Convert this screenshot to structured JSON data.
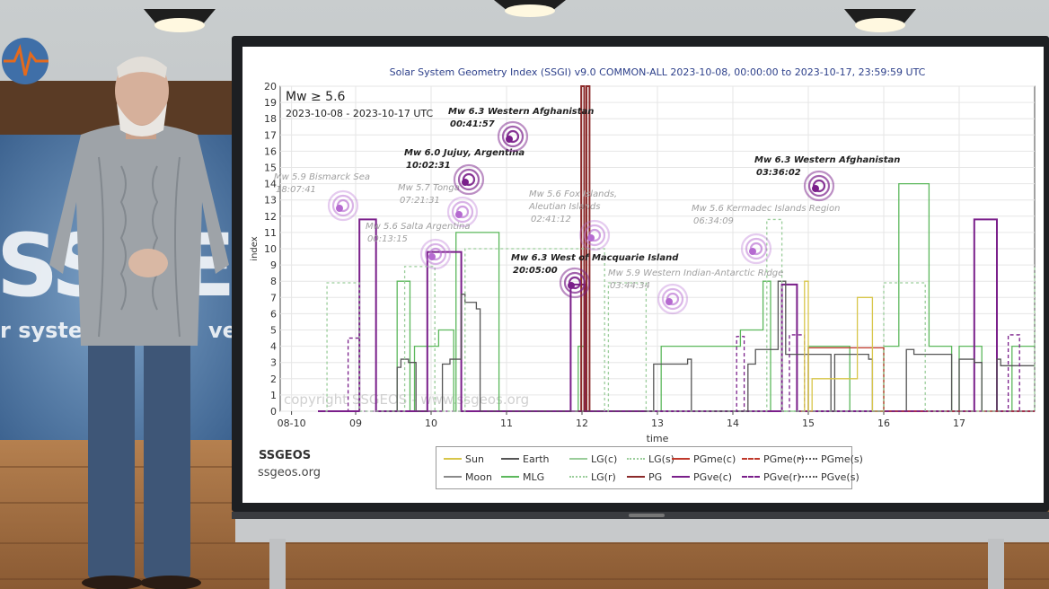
{
  "background": {
    "wall_text_main": "SSGEOS",
    "wall_text_sub": "r system",
    "wall_text_sub2": "vey"
  },
  "brand": {
    "name": "SSGEOS",
    "url": "ssgeos.org"
  },
  "chart_data": {
    "type": "line",
    "title": "Solar System Geometry Index (SSGI) v9.0 COMMON-ALL 2023-10-08, 00:00:00 to 2023-10-17, 23:59:59 UTC",
    "xlabel": "time",
    "ylabel": "index",
    "ylim": [
      0,
      20
    ],
    "xlim": [
      "2023-10-08",
      "2023-10-18"
    ],
    "x_ticks": [
      "08-10",
      "09",
      "10",
      "11",
      "12",
      "13",
      "14",
      "15",
      "16",
      "17"
    ],
    "y_ticks": [
      "0",
      "1",
      "2",
      "3",
      "4",
      "5",
      "6",
      "7",
      "8",
      "9",
      "10",
      "11",
      "12",
      "13",
      "14",
      "15",
      "16",
      "17",
      "18",
      "19",
      "20"
    ],
    "grid": true,
    "panel_label": "Mw ≥ 5.6",
    "panel_sublabel": "2023-10-08 - 2023-10-17 UTC",
    "watermark": "copyright SSGEOS - www.ssgeos.org",
    "colors": {
      "Sun": "#d8c64a",
      "Moon": "#8a8a8a",
      "Earth": "#555555",
      "MLG": "#5cb85c",
      "LG(c)": "#9acd9a",
      "LG(r)": "#9acd9a",
      "LG(s)": "#9acd9a",
      "PG": "#8b2a2a",
      "PGme(c)": "#c0392b",
      "PGme(r)": "#c0392b",
      "PGme(s)": "#555555",
      "PGve(c)": "#7a1f8a",
      "PGve(r)": "#7a1f8a",
      "PGve(s)": "#555555"
    },
    "legend_placement": "bottom",
    "legend": [
      [
        "Sun",
        "Earth",
        "LG(c)",
        "LG(s)",
        "PGme(c)",
        "PGme(r)",
        "PGme(s)"
      ],
      [
        "Moon",
        "MLG",
        "LG(r)",
        "PG",
        "PGve(c)",
        "PGve(r)",
        "PGve(s)"
      ]
    ],
    "series": [
      {
        "name": "MLG",
        "x": [
          9.45,
          9.55,
          9.62,
          9.72,
          9.78,
          10.1,
          10.3,
          10.33,
          10.85,
          10.9,
          11.95,
          12.05,
          12.98,
          13.05,
          14.1,
          14.4,
          14.5,
          15.0,
          15.5,
          15.55,
          16.0,
          16.2,
          16.5,
          16.6,
          16.9,
          17.0,
          17.3,
          17.7,
          18.0
        ],
        "y": [
          0,
          8,
          8,
          0,
          4,
          5,
          0,
          11,
          11,
          0,
          4,
          0,
          0,
          4,
          5,
          8,
          0,
          4,
          4,
          0,
          4,
          14,
          14,
          4,
          0,
          4,
          0,
          4,
          4
        ]
      },
      {
        "name": "PGve(c)",
        "x": [
          8.5,
          9.0,
          9.05,
          9.2,
          9.27,
          9.9,
          9.95,
          10.35,
          10.4,
          11.8,
          11.85,
          12.0,
          12.05,
          14.6,
          14.65,
          14.8,
          14.85,
          17.15,
          17.2,
          17.45,
          17.5,
          18.0
        ],
        "y": [
          0,
          0,
          11.8,
          11.8,
          0,
          0,
          9.8,
          9.8,
          0,
          0,
          7.8,
          7.8,
          0,
          0,
          7.8,
          7.8,
          0,
          0,
          11.8,
          11.8,
          0,
          0
        ]
      },
      {
        "name": "PG",
        "x": [
          11.95,
          11.99,
          12.0,
          12.03,
          12.06,
          12.1
        ],
        "y": [
          0,
          20,
          20,
          0,
          20,
          0
        ]
      },
      {
        "name": "Earth",
        "x": [
          9.4,
          9.55,
          9.6,
          9.7,
          9.8,
          10.15,
          10.25,
          10.4,
          10.45,
          10.6,
          10.65,
          12.9,
          12.95,
          13.4,
          13.45,
          14.2,
          14.3,
          14.6,
          14.7,
          15.3,
          15.35,
          15.8,
          15.85,
          16.3,
          16.4,
          16.9,
          17.0,
          17.2,
          17.3,
          17.5,
          17.55,
          18.0
        ],
        "y": [
          0,
          2.7,
          3.2,
          3,
          0,
          2.9,
          3.2,
          7.2,
          6.7,
          6.3,
          0,
          0,
          2.9,
          3.2,
          0,
          2.9,
          3.8,
          8,
          3.5,
          0,
          3.5,
          3.2,
          0,
          3.8,
          3.5,
          0,
          3.2,
          3,
          0,
          3.2,
          2.8,
          2.8
        ]
      },
      {
        "name": "PGme(c)",
        "x": [
          14.95,
          15.0,
          15.4,
          15.45,
          15.85,
          15.9,
          16.0,
          18.0
        ],
        "y": [
          0,
          3.9,
          3.9,
          3.9,
          3.9,
          3.9,
          0,
          0
        ]
      },
      {
        "name": "PGve(r)",
        "x": [
          8.8,
          8.9,
          8.95,
          9.05,
          9.1,
          14.0,
          14.05,
          14.1,
          14.15,
          14.7,
          14.75,
          14.9,
          14.95,
          17.6,
          17.65,
          17.75,
          17.8
        ],
        "y": [
          0,
          4.5,
          4.5,
          0,
          0,
          0,
          4.6,
          4.6,
          0,
          0,
          4.7,
          4.7,
          0,
          0,
          4.7,
          4.7,
          0
        ]
      },
      {
        "name": "Sun",
        "x": [
          14.9,
          14.95,
          15.0,
          15.05,
          15.6,
          15.65,
          15.8,
          15.85,
          16.0
        ],
        "y": [
          0,
          8,
          0,
          2,
          2,
          7,
          7,
          0,
          0
        ]
      },
      {
        "name": "LG(s)",
        "x": [
          8.6,
          8.62,
          9.0,
          9.05,
          9.6,
          9.65,
          10.0,
          10.05,
          10.4,
          10.45,
          12.3,
          12.35,
          12.8,
          12.85,
          14.4,
          14.45,
          14.6,
          14.65,
          15.95,
          16.0,
          16.5,
          16.55,
          17.95,
          18.0
        ],
        "y": [
          0,
          7.9,
          7.9,
          0,
          0,
          8.9,
          8.9,
          0,
          0,
          10,
          0,
          7.9,
          7.9,
          0,
          0,
          11.8,
          11.8,
          0,
          0,
          7.9,
          7.9,
          0,
          0,
          8.9
        ]
      }
    ],
    "annotations": [
      {
        "label": "Mw 5.9 Bismarck Sea",
        "time": "18:07:41",
        "highlight": false
      },
      {
        "label": "Mw 5.7 Tonga",
        "time": "07:21:31",
        "highlight": false
      },
      {
        "label": "Mw 6.0 Jujuy, Argentina",
        "time": "10:02:31",
        "highlight": true
      },
      {
        "label": "Mw 6.3 Western Afghanistan",
        "time": "00:41:57",
        "highlight": true
      },
      {
        "label": "Mw 5.6 Salta Argentina",
        "time": "00:13:15",
        "highlight": false
      },
      {
        "label": "Mw 5.6 Fox Islands, Aleutian Islands",
        "time": "02:41:12",
        "highlight": false
      },
      {
        "label": "Mw 6.3 West of Macquarie Island",
        "time": "20:05:00",
        "highlight": true
      },
      {
        "label": "Mw 5.9 Western Indian-Antarctic Ridge",
        "time": "03:44:34",
        "highlight": false
      },
      {
        "label": "Mw 5.6 Kermadec Islands Region",
        "time": "06:34:09",
        "highlight": false
      },
      {
        "label": "Mw 6.3 Western Afghanistan",
        "time": "03:36:02",
        "highlight": true
      }
    ]
  }
}
